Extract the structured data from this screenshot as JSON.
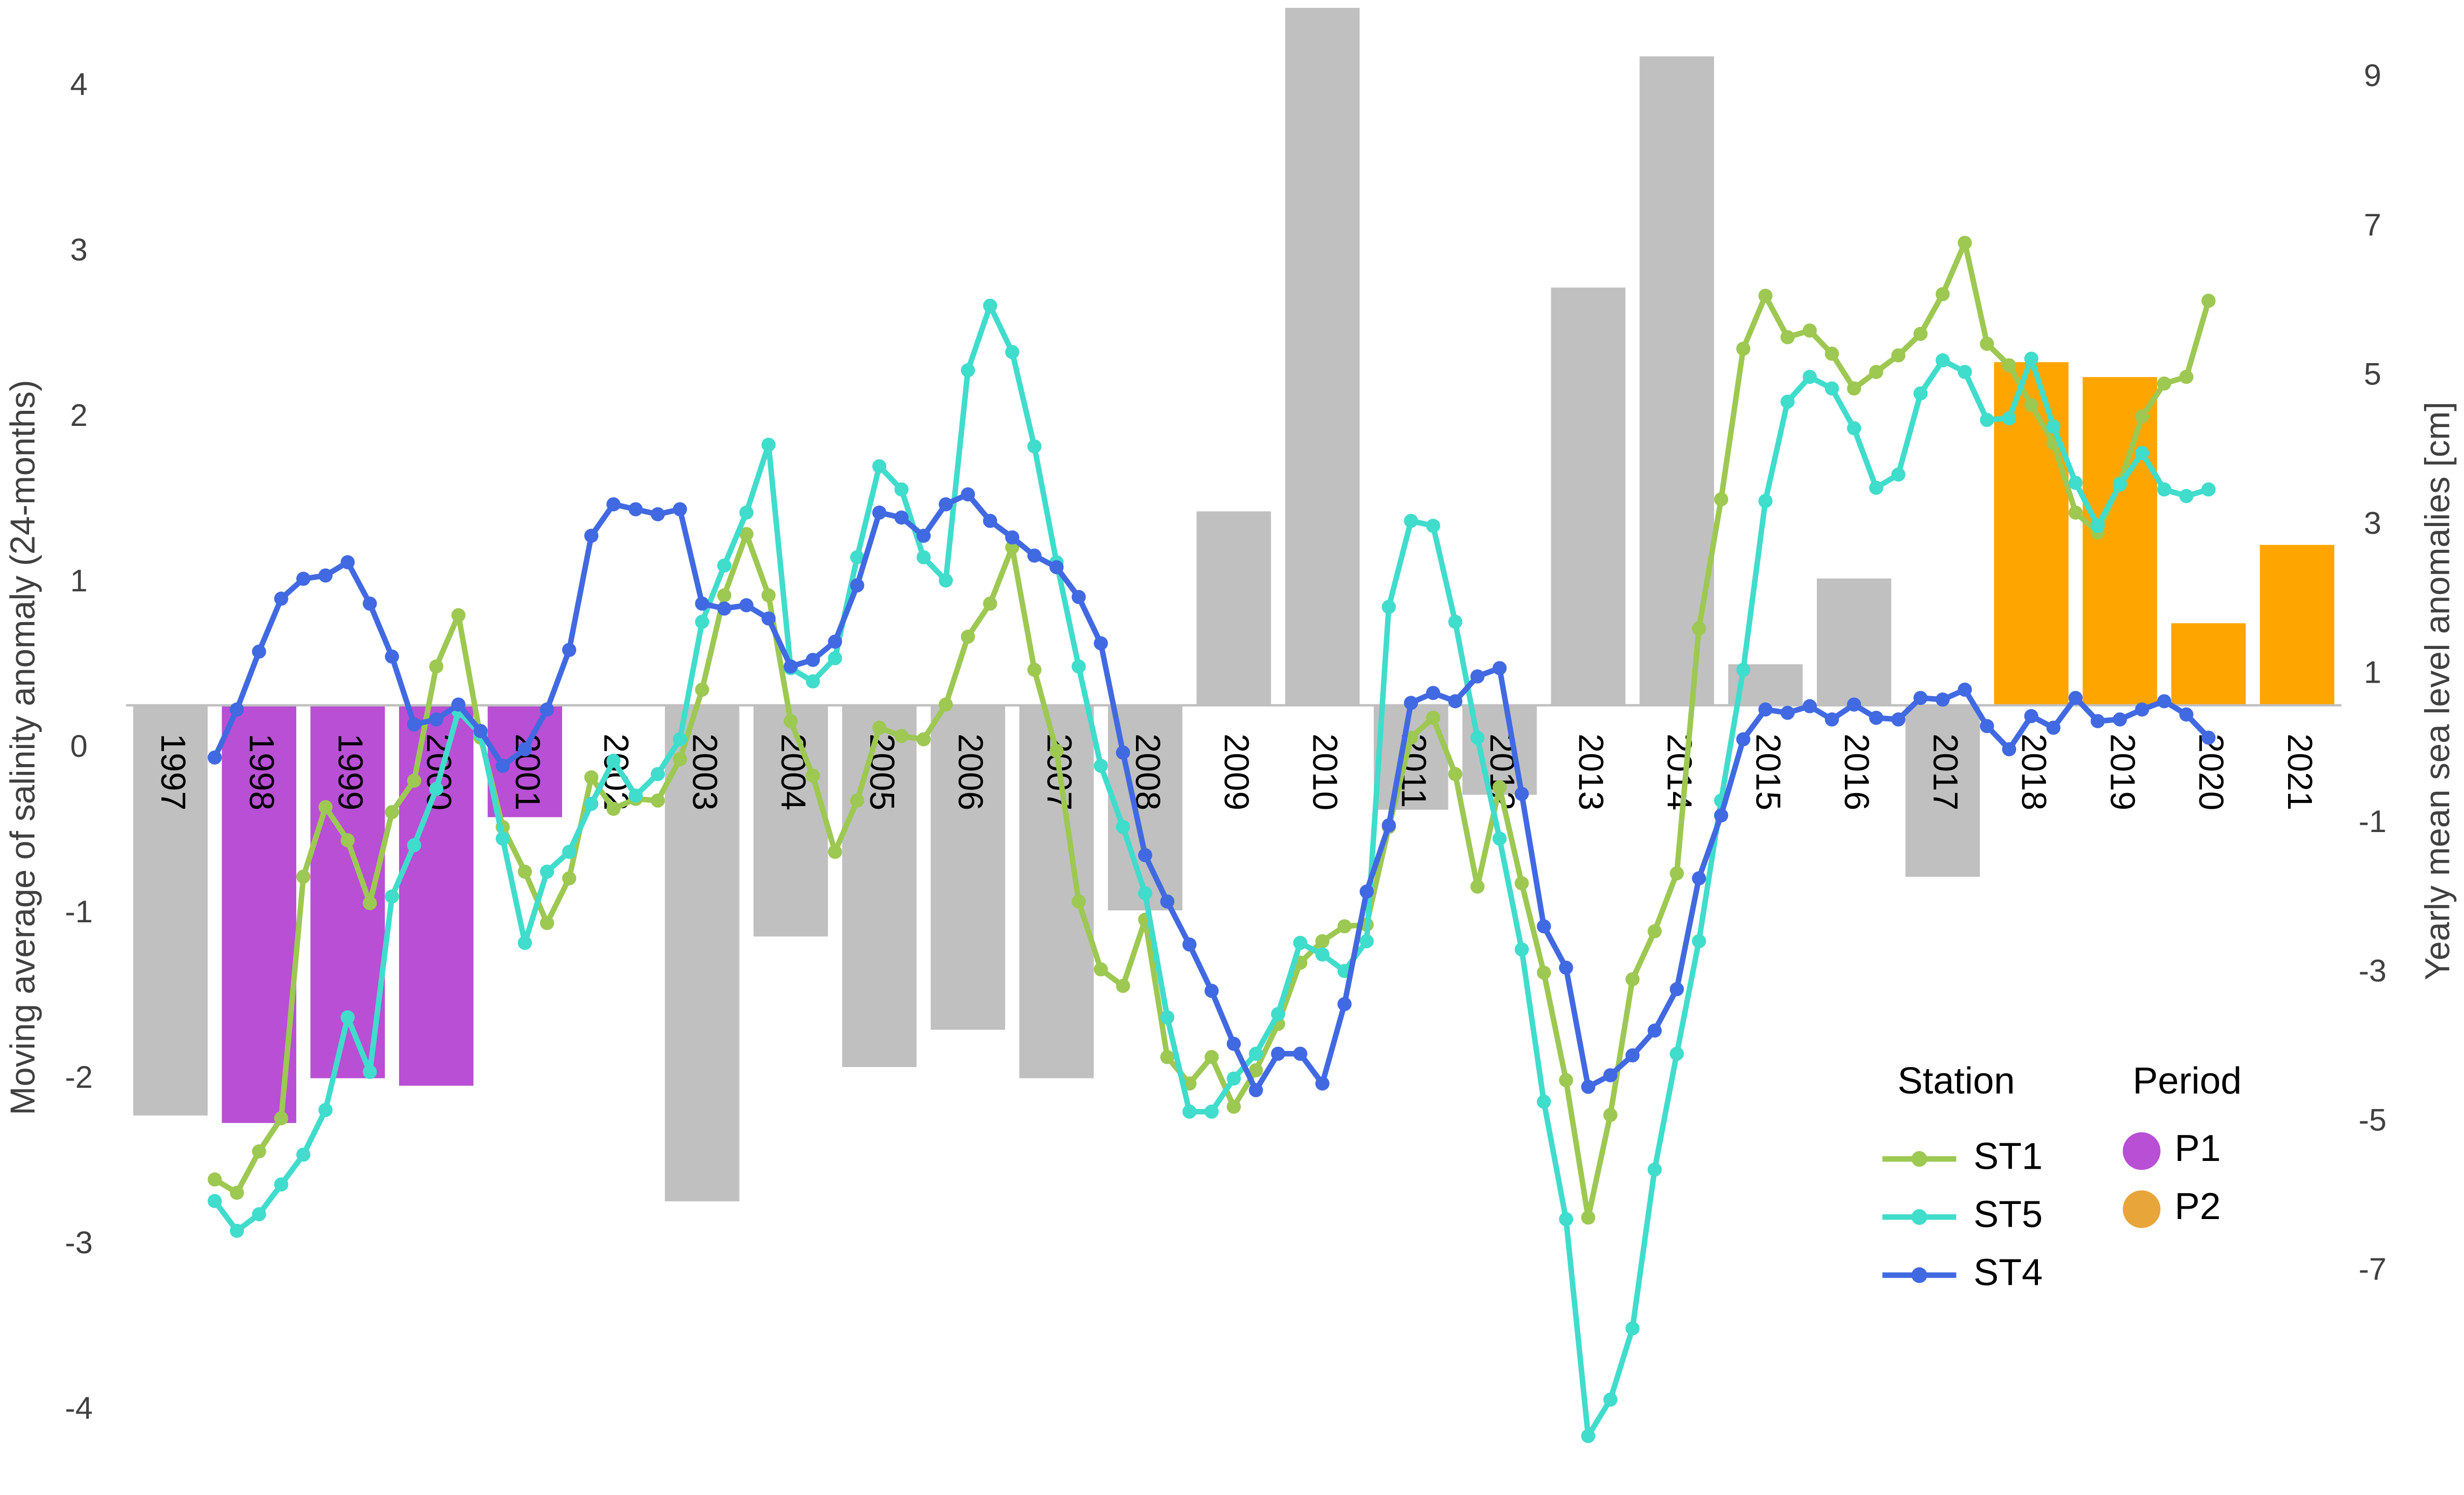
{
  "chart_data": {
    "type": "line",
    "y_label": "Moving average of salinity anomaly (24-months)",
    "y2_label": "Yearly mean sea level anomalies [cm]",
    "legend_title": "Station",
    "xlim": [
      1995.58,
      2023.38
    ],
    "ylim": [
      -4.71,
      4.21
    ],
    "yticks": [
      -4,
      -3,
      -2,
      -1,
      0,
      1,
      2,
      3,
      4
    ],
    "y2lim": [
      -10.44,
      9.35
    ],
    "y2ticks": [
      -7,
      -5,
      -3,
      -1,
      1,
      3,
      5,
      7,
      9
    ],
    "x": [
      1998,
      1998.25,
      1998.5,
      1998.75,
      1999,
      1999.25,
      1999.5,
      1999.75,
      2000,
      2000.25,
      2000.5,
      2000.75,
      2001,
      2001.25,
      2001.5,
      2001.75,
      2002,
      2002.25,
      2002.5,
      2002.75,
      2003,
      2003.25,
      2003.5,
      2003.75,
      2004,
      2004.25,
      2004.5,
      2004.75,
      2005,
      2005.25,
      2005.5,
      2005.75,
      2006,
      2006.25,
      2006.5,
      2006.75,
      2007,
      2007.25,
      2007.5,
      2007.75,
      2008,
      2008.25,
      2008.5,
      2008.75,
      2009,
      2009.25,
      2009.5,
      2009.75,
      2010,
      2010.25,
      2010.5,
      2010.75,
      2011,
      2011.25,
      2011.5,
      2011.75,
      2012,
      2012.25,
      2012.5,
      2012.75,
      2013,
      2013.25,
      2013.5,
      2013.75,
      2014,
      2014.25,
      2014.5,
      2014.75,
      2015,
      2015.25,
      2015.5,
      2015.75,
      2016,
      2016.25,
      2016.5,
      2016.75,
      2017,
      2017.25,
      2017.5,
      2017.75,
      2018,
      2018.25,
      2018.5,
      2018.75,
      2019,
      2019.25,
      2019.5,
      2019.75,
      2020,
      2020.25,
      2020.5
    ],
    "series": [
      {
        "name": "ST1",
        "color": "#9dc852",
        "values": [
          -2.87,
          -2.95,
          -2.7,
          -2.5,
          -1.04,
          -0.62,
          -0.82,
          -1.2,
          -0.65,
          -0.46,
          0.23,
          0.54,
          -0.2,
          -0.74,
          -1.01,
          -1.32,
          -1.05,
          -0.44,
          -0.63,
          -0.57,
          -0.58,
          -0.33,
          0.09,
          0.66,
          1.03,
          0.66,
          -0.1,
          -0.43,
          -0.89,
          -0.58,
          -0.14,
          -0.19,
          -0.21,
          0,
          0.41,
          0.61,
          0.95,
          0.21,
          -0.28,
          -1.19,
          -1.6,
          -1.7,
          -1.3,
          -2.13,
          -2.29,
          -2.13,
          -2.43,
          -2.21,
          -1.93,
          -1.56,
          -1.43,
          -1.34,
          -1.33,
          -0.74,
          -0.2,
          -0.08,
          -0.42,
          -1.1,
          -0.5,
          -1.08,
          -1.62,
          -2.27,
          -3.1,
          -2.48,
          -1.66,
          -1.37,
          -1.02,
          0.46,
          1.24,
          2.15,
          2.47,
          2.22,
          2.26,
          2.12,
          1.91,
          2.01,
          2.11,
          2.24,
          2.48,
          2.79,
          2.18,
          2.05,
          1.81,
          1.58,
          1.16,
          1.04,
          1.34,
          1.74,
          1.94,
          1.98,
          2.44
        ]
      },
      {
        "name": "ST5",
        "color": "#40dccc",
        "values": [
          -3.0,
          -3.18,
          -3.08,
          -2.9,
          -2.72,
          -2.45,
          -1.89,
          -2.22,
          -1.16,
          -0.85,
          -0.51,
          -0.04,
          -0.18,
          -0.81,
          -1.44,
          -1.01,
          -0.89,
          -0.6,
          -0.34,
          -0.55,
          -0.42,
          -0.21,
          0.5,
          0.84,
          1.16,
          1.57,
          0.22,
          0.14,
          0.28,
          0.89,
          1.44,
          1.3,
          0.89,
          0.75,
          2.02,
          2.41,
          2.13,
          1.56,
          0.86,
          0.23,
          -0.37,
          -0.74,
          -1.14,
          -1.89,
          -2.46,
          -2.46,
          -2.26,
          -2.11,
          -1.87,
          -1.44,
          -1.51,
          -1.61,
          -1.43,
          0.59,
          1.11,
          1.08,
          0.5,
          -0.2,
          -0.81,
          -1.48,
          -2.4,
          -3.11,
          -4.42,
          -4.2,
          -3.77,
          -2.81,
          -2.11,
          -1.43,
          -0.58,
          0.21,
          1.23,
          1.83,
          1.98,
          1.91,
          1.67,
          1.31,
          1.39,
          1.88,
          2.08,
          2.01,
          1.72,
          1.73,
          2.09,
          1.68,
          1.34,
          1.08,
          1.33,
          1.52,
          1.3,
          1.26,
          1.3
        ]
      },
      {
        "name": "ST4",
        "color": "#4169e1",
        "values": [
          -0.32,
          -0.03,
          0.32,
          0.64,
          0.76,
          0.78,
          0.86,
          0.61,
          0.29,
          -0.12,
          -0.09,
          0,
          -0.16,
          -0.37,
          -0.27,
          -0.03,
          0.33,
          1.02,
          1.21,
          1.18,
          1.15,
          1.18,
          0.61,
          0.58,
          0.6,
          0.52,
          0.23,
          0.27,
          0.38,
          0.72,
          1.16,
          1.13,
          1.02,
          1.21,
          1.27,
          1.11,
          1.01,
          0.9,
          0.83,
          0.65,
          0.37,
          -0.29,
          -0.91,
          -1.19,
          -1.45,
          -1.73,
          -2.05,
          -2.33,
          -2.11,
          -2.11,
          -2.29,
          -1.81,
          -1.13,
          -0.73,
          0.01,
          0.07,
          0.02,
          0.17,
          0.22,
          -0.54,
          -1.34,
          -1.59,
          -2.31,
          -2.24,
          -2.12,
          -1.97,
          -1.72,
          -1.05,
          -0.67,
          -0.21,
          -0.03,
          -0.05,
          -0.01,
          -0.09,
          0,
          -0.08,
          -0.09,
          0.04,
          0.03,
          0.09,
          -0.13,
          -0.27,
          -0.07,
          -0.14,
          0.04,
          -0.1,
          -0.09,
          -0.03,
          0.02,
          -0.06,
          -0.2
        ]
      }
    ],
    "bars": {
      "type": "bar",
      "axis": "y2",
      "categories": [
        "1997",
        "1998",
        "1999",
        "2000",
        "2001",
        "2002",
        "2003",
        "2004",
        "2005",
        "2006",
        "2007",
        "2008",
        "2009",
        "2010",
        "2011",
        "2012",
        "2013",
        "2014",
        "2015",
        "2016",
        "2017",
        "2018",
        "2019",
        "2020",
        "2021"
      ],
      "values": [
        -5.5,
        -5.6,
        -5.0,
        -5.1,
        -1.5,
        0,
        -6.65,
        -3.1,
        -4.85,
        -4.35,
        -5.0,
        -2.75,
        2.6,
        9.35,
        -1.4,
        -1.2,
        5.6,
        8.7,
        0.55,
        1.7,
        -2.3,
        4.6,
        4.4,
        1.1,
        2.15
      ],
      "colors": [
        "#c0c0c0",
        "#b84fd4",
        "#b84fd4",
        "#b84fd4",
        "#b84fd4",
        "#c0c0c0",
        "#c0c0c0",
        "#c0c0c0",
        "#c0c0c0",
        "#c0c0c0",
        "#c0c0c0",
        "#c0c0c0",
        "#c0c0c0",
        "#c0c0c0",
        "#c0c0c0",
        "#c0c0c0",
        "#c0c0c0",
        "#c0c0c0",
        "#c0c0c0",
        "#c0c0c0",
        "#c0c0c0",
        "#ffa500",
        "#ffa500",
        "#ffa500",
        "#ffa500"
      ]
    },
    "period_legend": {
      "title": "Period",
      "items": [
        {
          "name": "P1",
          "color": "#b84fd4"
        },
        {
          "name": "P2",
          "color": "#e8a53a"
        }
      ]
    }
  }
}
